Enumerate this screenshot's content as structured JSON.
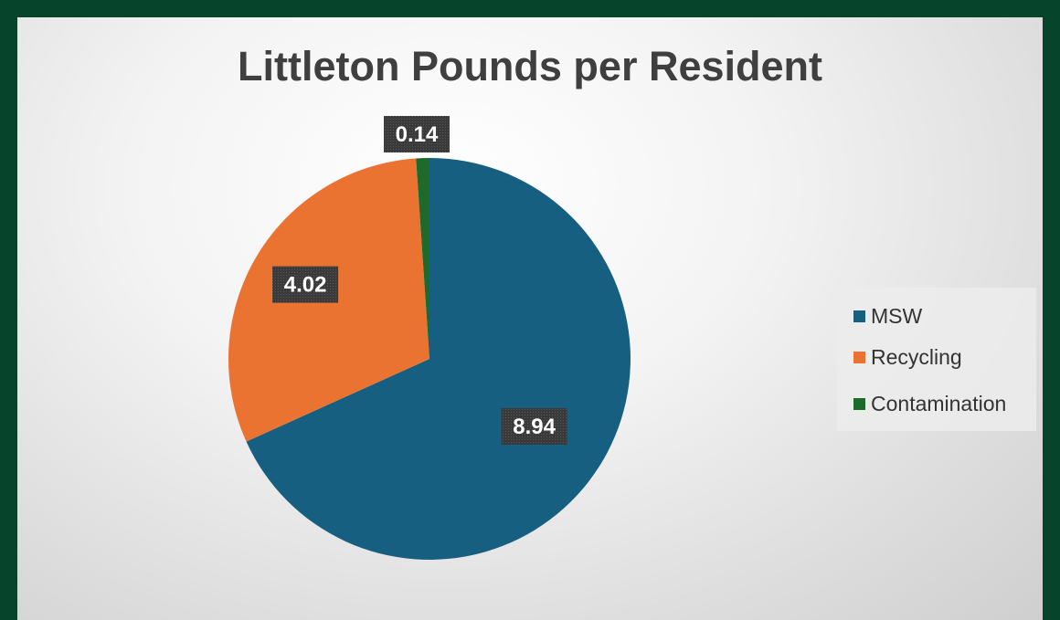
{
  "chart_data": {
    "type": "pie",
    "title": "Littleton Pounds per Resident",
    "categories": [
      "MSW",
      "Recycling",
      "Contamination"
    ],
    "values": [
      8.94,
      4.02,
      0.14
    ],
    "data_labels": [
      "8.94",
      "4.02",
      "0.14"
    ],
    "colors": [
      "#175f80",
      "#eb7332",
      "#1d6b2c"
    ],
    "legend_position": "right",
    "start_angle": "12 o'clock, clockwise"
  },
  "colors": {
    "outer_border": "#07442c",
    "label_box": "#3a3a3a"
  }
}
